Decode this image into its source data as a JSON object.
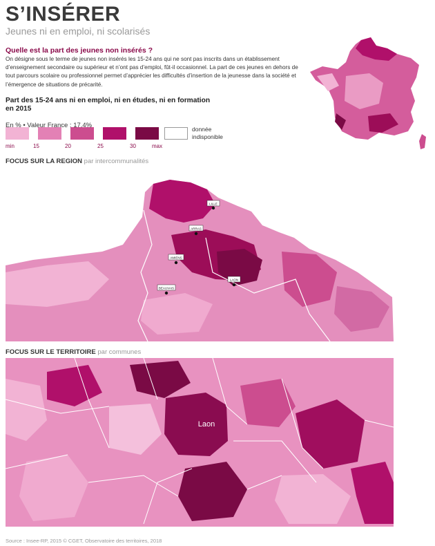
{
  "header": {
    "title": "S’INSÉRER",
    "subtitle": "Jeunes ni en emploi, ni scolarisés"
  },
  "intro": {
    "question": "Quelle est la part des jeunes non insérés ?",
    "text": "On désigne sous le terme de jeunes non insérés les 15-24 ans qui ne sont pas inscrits dans un établissement d’enseignement secondaire ou supérieur et n’ont pas d’emploi, fût-il occasionnel. La part de ces jeunes en dehors de tout parcours scolaire ou professionnel permet d’apprécier les difficultés d’insertion de la jeunesse dans la société et l’émergence de situations de précarité."
  },
  "map_legend": {
    "title": "Part des 15-24 ans ni en emploi, ni en études, ni en formation en 2015",
    "unit_note": "En % • Valeur France : 17,4%",
    "classes": [
      {
        "color": "#f2b3d4"
      },
      {
        "color": "#e381b5"
      },
      {
        "color": "#cc4d8f"
      },
      {
        "color": "#b0106a"
      },
      {
        "color": "#7a0a45"
      }
    ],
    "ticks": [
      "min",
      "15",
      "20",
      "25",
      "30",
      "max"
    ],
    "na_label": "donnée indisponible"
  },
  "sections": {
    "region_title": "FOCUS SUR LA REGION",
    "region_sub": "par intercommunalités",
    "territoire_title": "FOCUS SUR LE TERRITOIRE",
    "territoire_sub": "par communes"
  },
  "cities": {
    "lille": "LILLE",
    "arras": "ARRAS",
    "amiens": "AMIENS",
    "laon": "LAON",
    "beauvais": "BEAUVAIS",
    "laon_focus": "Laon"
  },
  "source": "Source : Insee-RP, 2015 © CGET, Observatoire des territoires, 2018"
}
